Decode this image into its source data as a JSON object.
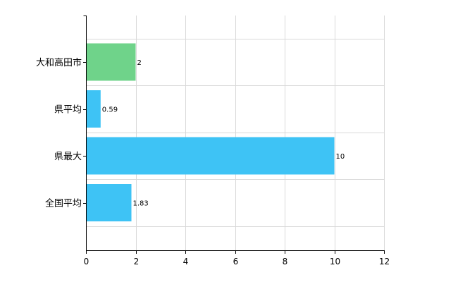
{
  "chart_data": {
    "type": "bar",
    "orientation": "horizontal",
    "categories": [
      "大和高田市",
      "県平均",
      "県最大",
      "全国平均"
    ],
    "values": [
      2,
      0.59,
      10,
      1.83
    ],
    "value_labels": [
      "2",
      "0.59",
      "10",
      "1.83"
    ],
    "bar_colors": [
      "#6fd38a",
      "#3ec3f5",
      "#3ec3f5",
      "#3ec3f5"
    ],
    "xlim": [
      0,
      12
    ],
    "xticks": [
      0,
      2,
      4,
      6,
      8,
      10,
      12
    ],
    "grid": true
  }
}
